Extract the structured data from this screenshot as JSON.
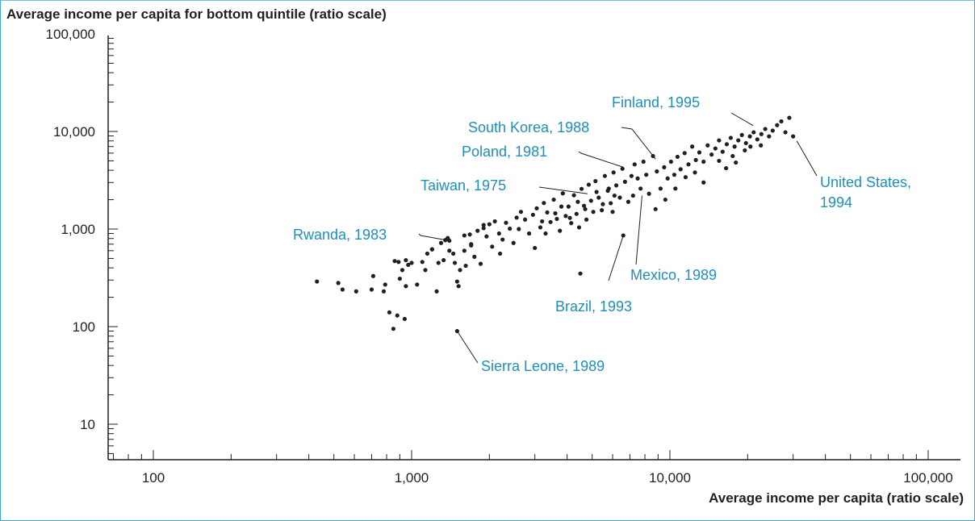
{
  "chart_data": {
    "type": "scatter",
    "title": "",
    "ylabel": "Average income per capita for bottom quintile (ratio scale)",
    "xlabel": "Average income per capita (ratio scale)",
    "x_scale": "log",
    "y_scale": "log",
    "xlim": [
      56,
      130000
    ],
    "ylim": [
      5,
      100000
    ],
    "x_ticks": [
      {
        "value": 100,
        "label": "100"
      },
      {
        "value": 1000,
        "label": "1,000"
      },
      {
        "value": 10000,
        "label": "10,000"
      },
      {
        "value": 100000,
        "label": "100,000"
      }
    ],
    "y_ticks": [
      {
        "value": 10,
        "label": "10"
      },
      {
        "value": 100,
        "label": "100"
      },
      {
        "value": 1000,
        "label": "1,000"
      },
      {
        "value": 10000,
        "label": "10,000"
      },
      {
        "value": 100000,
        "label": "100,000"
      }
    ],
    "grid": false,
    "point_color": "#231f20",
    "annotation_color": "#1f8fb8",
    "annotations": [
      {
        "text": "Finland, 1995",
        "x": 21000,
        "y": 11500
      },
      {
        "text": "South Korea, 1988",
        "x": 8800,
        "y": 5200
      },
      {
        "text": "Poland, 1981",
        "x": 6600,
        "y": 4300
      },
      {
        "text": "Taiwan, 1975",
        "x": 4800,
        "y": 2300
      },
      {
        "text": "Rwanda, 1983",
        "x": 1400,
        "y": 760
      },
      {
        "text": "United States, 1994",
        "x": 31000,
        "y": 8000
      },
      {
        "text": "Mexico, 1989",
        "x": 7800,
        "y": 2200
      },
      {
        "text": "Brazil, 1993",
        "x": 6600,
        "y": 860
      },
      {
        "text": "Sierra Leone, 1989",
        "x": 1500,
        "y": 90
      }
    ],
    "points": [
      [
        430,
        290
      ],
      [
        520,
        280
      ],
      [
        540,
        240
      ],
      [
        610,
        230
      ],
      [
        700,
        240
      ],
      [
        710,
        330
      ],
      [
        780,
        230
      ],
      [
        790,
        270
      ],
      [
        820,
        140
      ],
      [
        850,
        95
      ],
      [
        880,
        130
      ],
      [
        940,
        120
      ],
      [
        860,
        470
      ],
      [
        890,
        460
      ],
      [
        920,
        380
      ],
      [
        950,
        480
      ],
      [
        970,
        430
      ],
      [
        1000,
        450
      ],
      [
        1050,
        270
      ],
      [
        1130,
        380
      ],
      [
        1150,
        560
      ],
      [
        1200,
        620
      ],
      [
        1250,
        230
      ],
      [
        1270,
        450
      ],
      [
        1300,
        720
      ],
      [
        1350,
        770
      ],
      [
        1380,
        810
      ],
      [
        1400,
        600
      ],
      [
        1450,
        560
      ],
      [
        1470,
        450
      ],
      [
        1500,
        290
      ],
      [
        1520,
        260
      ],
      [
        1540,
        380
      ],
      [
        1600,
        860
      ],
      [
        1620,
        420
      ],
      [
        1680,
        880
      ],
      [
        1700,
        680
      ],
      [
        1750,
        520
      ],
      [
        1800,
        960
      ],
      [
        1850,
        440
      ],
      [
        1900,
        1020
      ],
      [
        1950,
        840
      ],
      [
        2000,
        1120
      ],
      [
        2050,
        660
      ],
      [
        2100,
        1200
      ],
      [
        2180,
        900
      ],
      [
        2250,
        780
      ],
      [
        2320,
        1160
      ],
      [
        2400,
        1010
      ],
      [
        2480,
        720
      ],
      [
        2550,
        1310
      ],
      [
        2650,
        1500
      ],
      [
        2750,
        1250
      ],
      [
        2850,
        900
      ],
      [
        2950,
        1400
      ],
      [
        3000,
        640
      ],
      [
        3050,
        1630
      ],
      [
        3150,
        1040
      ],
      [
        3250,
        1850
      ],
      [
        3350,
        1480
      ],
      [
        3450,
        1180
      ],
      [
        3550,
        2000
      ],
      [
        3650,
        1270
      ],
      [
        3750,
        960
      ],
      [
        3850,
        2320
      ],
      [
        3950,
        1360
      ],
      [
        4050,
        1700
      ],
      [
        4150,
        1150
      ],
      [
        4250,
        2220
      ],
      [
        4350,
        1430
      ],
      [
        4450,
        1040
      ],
      [
        4550,
        2580
      ],
      [
        4650,
        1730
      ],
      [
        4750,
        1250
      ],
      [
        4850,
        2850
      ],
      [
        4950,
        1950
      ],
      [
        5050,
        1500
      ],
      [
        5150,
        3100
      ],
      [
        5300,
        2100
      ],
      [
        5450,
        1560
      ],
      [
        5600,
        3500
      ],
      [
        5750,
        2470
      ],
      [
        5900,
        1840
      ],
      [
        6050,
        3800
      ],
      [
        6200,
        2800
      ],
      [
        6400,
        2100
      ],
      [
        6550,
        4150
      ],
      [
        6700,
        3050
      ],
      [
        6900,
        1900
      ],
      [
        7100,
        3500
      ],
      [
        7300,
        4600
      ],
      [
        7500,
        3300
      ],
      [
        7700,
        2600
      ],
      [
        7900,
        4900
      ],
      [
        8100,
        3600
      ],
      [
        8300,
        2300
      ],
      [
        8600,
        5600
      ],
      [
        8900,
        3900
      ],
      [
        9200,
        2600
      ],
      [
        9500,
        4300
      ],
      [
        9800,
        3300
      ],
      [
        10100,
        4900
      ],
      [
        10400,
        3600
      ],
      [
        10700,
        5500
      ],
      [
        11000,
        4100
      ],
      [
        11400,
        6000
      ],
      [
        11800,
        4600
      ],
      [
        12200,
        7000
      ],
      [
        12600,
        5100
      ],
      [
        13000,
        6100
      ],
      [
        13500,
        4900
      ],
      [
        14000,
        7200
      ],
      [
        14500,
        5800
      ],
      [
        15000,
        6700
      ],
      [
        15500,
        8100
      ],
      [
        16000,
        6200
      ],
      [
        16600,
        7400
      ],
      [
        17200,
        8600
      ],
      [
        17800,
        7000
      ],
      [
        18400,
        8100
      ],
      [
        19000,
        9200
      ],
      [
        19700,
        7600
      ],
      [
        20400,
        8900
      ],
      [
        21100,
        9800
      ],
      [
        21800,
        8300
      ],
      [
        22600,
        9400
      ],
      [
        23400,
        10600
      ],
      [
        24200,
        8900
      ],
      [
        25000,
        10200
      ],
      [
        26000,
        11600
      ],
      [
        27000,
        12700
      ],
      [
        28000,
        9800
      ],
      [
        29000,
        13800
      ],
      [
        30000,
        8900
      ],
      [
        3200,
        1200
      ],
      [
        3300,
        900
      ],
      [
        3600,
        1450
      ],
      [
        3800,
        1700
      ],
      [
        4100,
        1300
      ],
      [
        4400,
        1900
      ],
      [
        4700,
        1600
      ],
      [
        5200,
        2400
      ],
      [
        5500,
        1800
      ],
      [
        5800,
        2600
      ],
      [
        6100,
        2200
      ],
      [
        6600,
        860
      ],
      [
        6000,
        1500
      ],
      [
        4500,
        350
      ],
      [
        1500,
        90
      ],
      [
        2600,
        1000
      ],
      [
        2200,
        560
      ],
      [
        1900,
        1100
      ],
      [
        1700,
        700
      ],
      [
        1400,
        760
      ],
      [
        1600,
        600
      ],
      [
        1100,
        460
      ],
      [
        1200,
        620
      ],
      [
        1330,
        480
      ],
      [
        900,
        310
      ],
      [
        950,
        260
      ],
      [
        7200,
        2200
      ],
      [
        8800,
        1600
      ],
      [
        9600,
        2000
      ],
      [
        10500,
        2600
      ],
      [
        11500,
        3400
      ],
      [
        12500,
        3800
      ],
      [
        13500,
        3000
      ],
      [
        15500,
        5000
      ],
      [
        17500,
        5600
      ],
      [
        19500,
        6400
      ],
      [
        18000,
        4800
      ],
      [
        16500,
        4200
      ],
      [
        20500,
        7000
      ],
      [
        22500,
        7200
      ]
    ]
  }
}
